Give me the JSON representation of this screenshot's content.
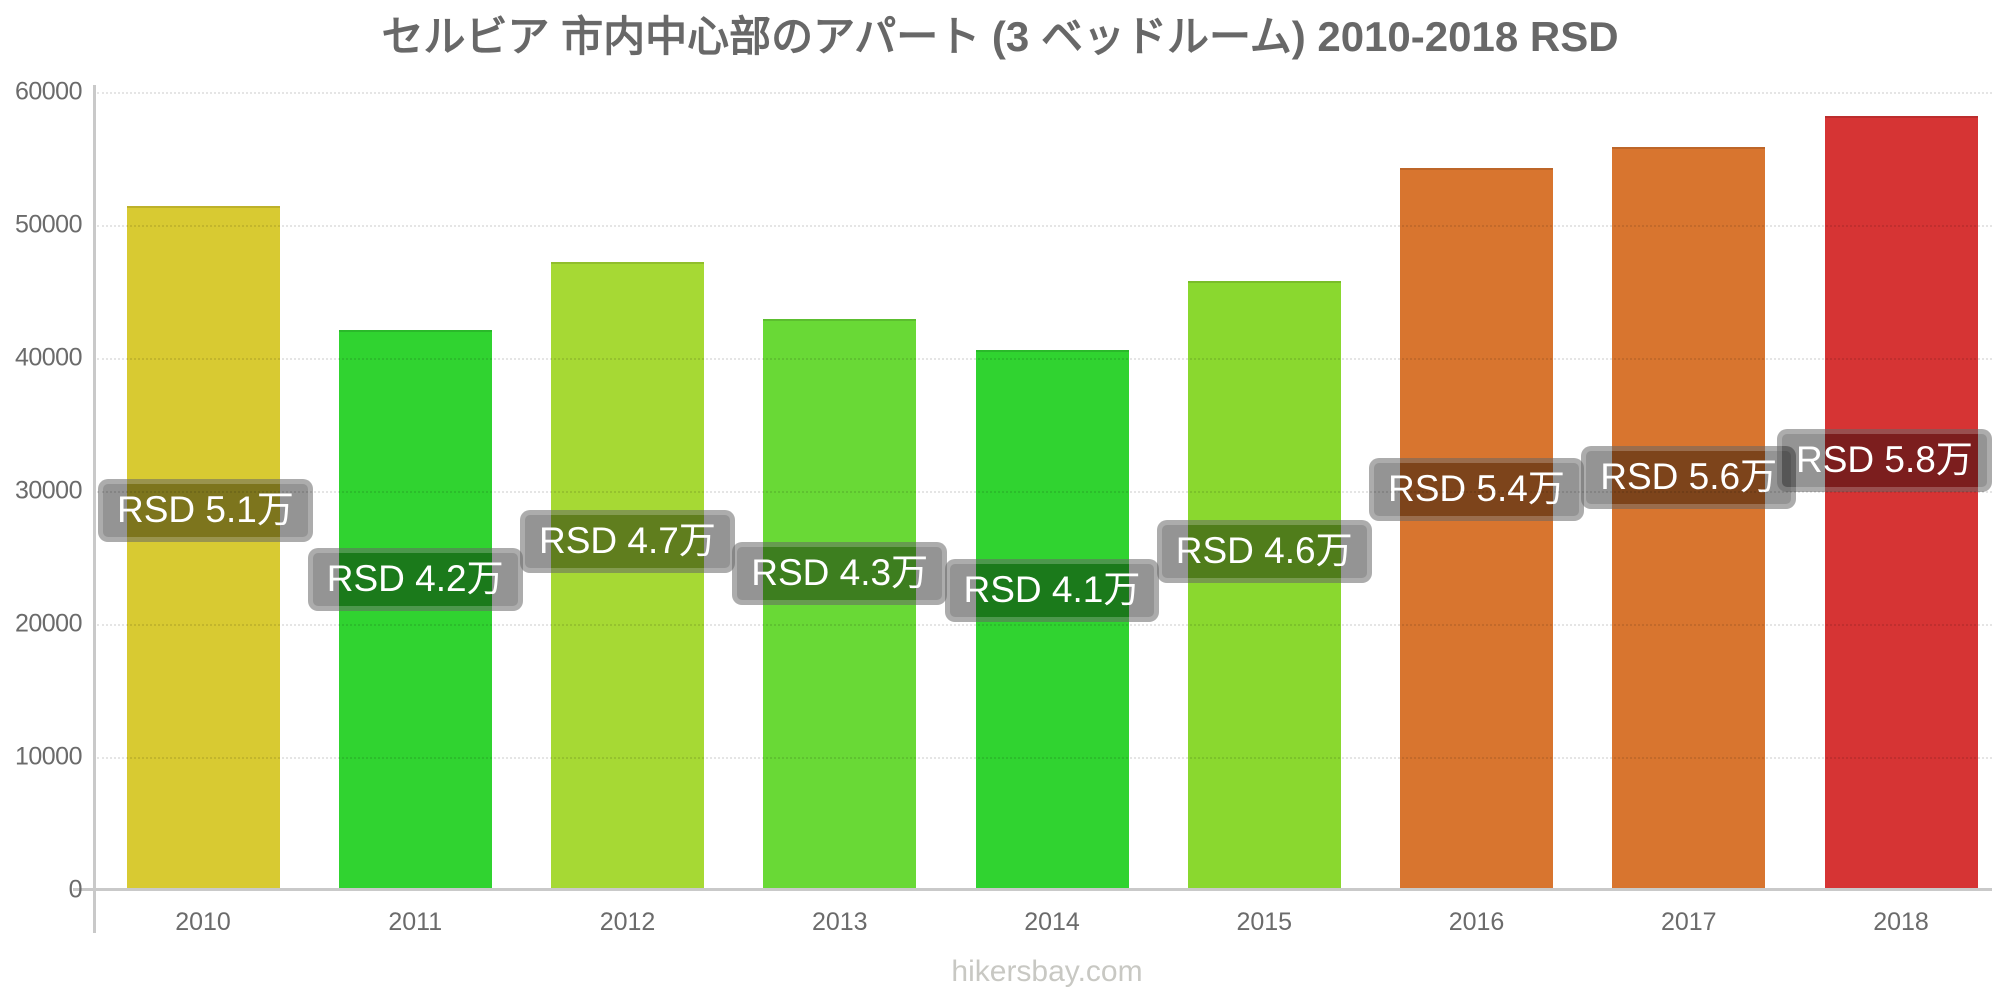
{
  "title": "セルビア 市内中心部のアパート (3 ベッドルーム) 2010-2018 RSD",
  "watermark": "hikersbay.com",
  "chart_data": {
    "type": "bar",
    "title": "セルビア 市内中心部のアパート (3 ベッドルーム) 2010-2018 RSD",
    "currency": "RSD",
    "categories": [
      "2010",
      "2011",
      "2012",
      "2013",
      "2014",
      "2015",
      "2016",
      "2017",
      "2018"
    ],
    "values": [
      51400,
      42100,
      47200,
      42900,
      40600,
      45800,
      54300,
      55900,
      58200
    ],
    "bar_labels": [
      "RSD 5.1万",
      "RSD 4.2万",
      "RSD 4.7万",
      "RSD 4.3万",
      "RSD 4.1万",
      "RSD 4.6万",
      "RSD 5.4万",
      "RSD 5.6万",
      "RSD 5.8万"
    ],
    "bar_colors": [
      "#d8ca32",
      "#30d330",
      "#a6d934",
      "#69d936",
      "#30d330",
      "#8ad82f",
      "#d8752f",
      "#d8752f",
      "#d63434"
    ],
    "xlabel": "",
    "ylabel": "",
    "ylim": [
      0,
      60000
    ],
    "yticks": [
      0,
      10000,
      20000,
      30000,
      40000,
      50000,
      60000
    ],
    "ytick_labels": [
      "0",
      "10000",
      "20000",
      "30000",
      "40000",
      "50000",
      "60000"
    ],
    "grid": "faint dotted horizontal gridlines drawn over bars",
    "legend": "none",
    "axis_color": "#c9c9c9",
    "tick_label_color": "#6b6b6b",
    "title_color": "#686868",
    "value_label_style": {
      "text_color": "#ffffff",
      "background": "rgba(0,0,0,0.42)"
    },
    "watermark_color": "#c8c8c3"
  }
}
